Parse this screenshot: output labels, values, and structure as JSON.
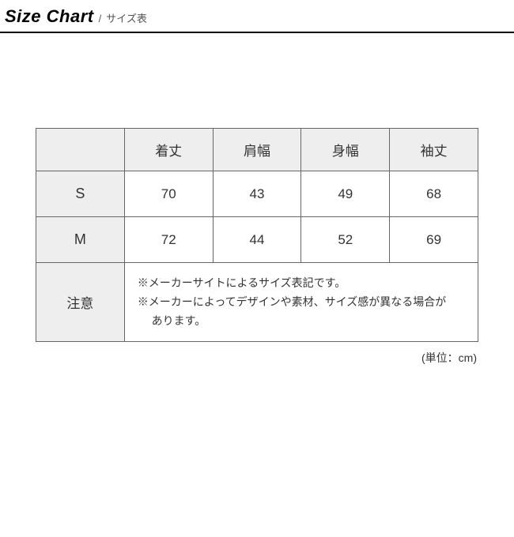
{
  "header": {
    "title": "Size Chart",
    "separator": "/",
    "subtitle": "サイズ表"
  },
  "table": {
    "columns": [
      "",
      "着丈",
      "肩幅",
      "身幅",
      "袖丈"
    ],
    "rows": [
      {
        "label": "S",
        "values": [
          "70",
          "43",
          "49",
          "68"
        ]
      },
      {
        "label": "M",
        "values": [
          "72",
          "44",
          "52",
          "69"
        ]
      }
    ],
    "note": {
      "label": "注意",
      "lines": [
        "※メーカーサイトによるサイズ表記です。",
        "※メーカーによってデザインや素材、サイズ感が異なる場合が",
        "　 あります。"
      ]
    },
    "unit_label": "(単位：cm)",
    "col_widths": [
      "20%",
      "20%",
      "20%",
      "20%",
      "20%"
    ],
    "header_bg": "#eeeeee",
    "border_color": "#666666",
    "text_color": "#333333",
    "background_color": "#ffffff"
  }
}
